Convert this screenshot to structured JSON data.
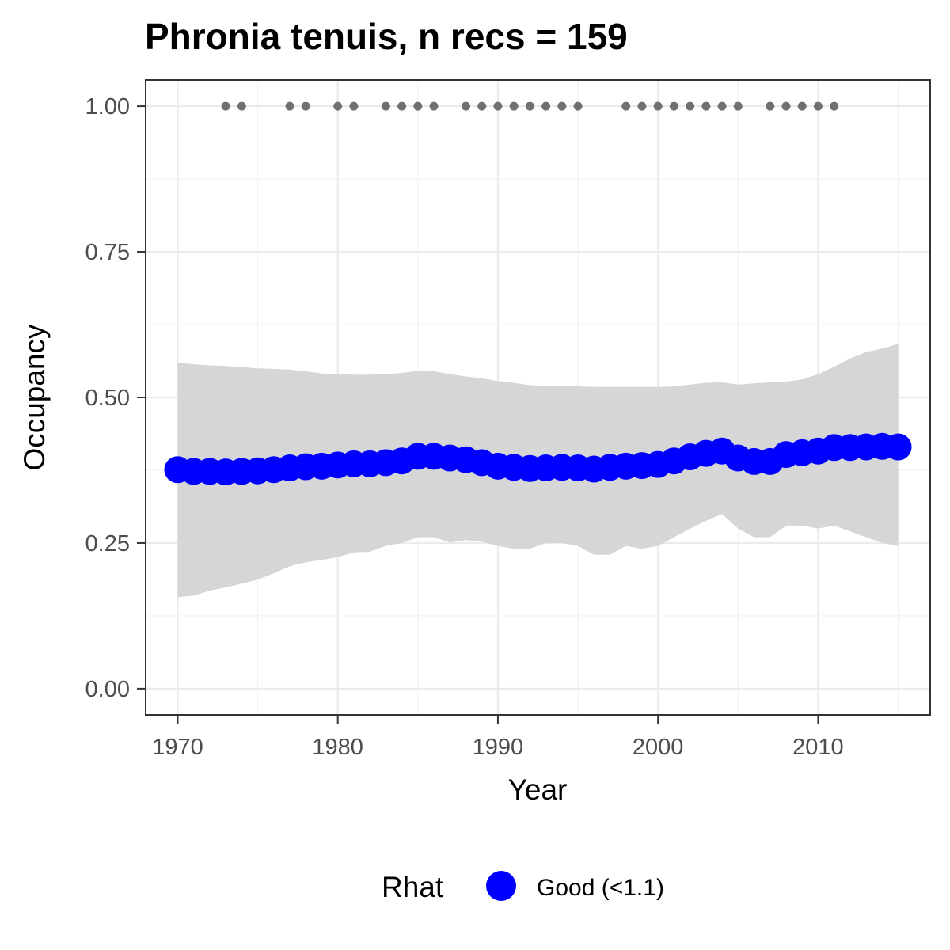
{
  "chart_data": {
    "type": "line",
    "title": "Phronia tenuis, n recs = 159",
    "xlabel": "Year",
    "ylabel": "Occupancy",
    "xlim": [
      1968,
      2017
    ],
    "ylim": [
      -0.045,
      1.045
    ],
    "x_ticks": [
      1970,
      1980,
      1990,
      2000,
      2010
    ],
    "y_ticks": [
      0.0,
      0.25,
      0.5,
      0.75,
      1.0
    ],
    "y_tick_labels": [
      "0.00",
      "0.25",
      "0.50",
      "0.75",
      "1.00"
    ],
    "grid": true,
    "legend": {
      "title": "Rhat",
      "placement": "bottom",
      "entries": [
        {
          "label": "Good (<1.1)",
          "color": "#0000ff"
        }
      ]
    },
    "series": [
      {
        "kind": "occupancy-estimate",
        "color": "#0000ff",
        "x": [
          1970,
          1971,
          1972,
          1973,
          1974,
          1975,
          1976,
          1977,
          1978,
          1979,
          1980,
          1981,
          1982,
          1983,
          1984,
          1985,
          1986,
          1987,
          1988,
          1989,
          1990,
          1991,
          1992,
          1993,
          1994,
          1995,
          1996,
          1997,
          1998,
          1999,
          2000,
          2001,
          2002,
          2003,
          2004,
          2005,
          2006,
          2007,
          2008,
          2009,
          2010,
          2011,
          2012,
          2013,
          2014,
          2015
        ],
        "y": [
          0.376,
          0.373,
          0.373,
          0.372,
          0.373,
          0.374,
          0.376,
          0.379,
          0.381,
          0.382,
          0.384,
          0.386,
          0.386,
          0.388,
          0.391,
          0.399,
          0.399,
          0.396,
          0.393,
          0.388,
          0.382,
          0.38,
          0.378,
          0.379,
          0.38,
          0.379,
          0.377,
          0.38,
          0.382,
          0.383,
          0.385,
          0.391,
          0.398,
          0.404,
          0.408,
          0.396,
          0.39,
          0.39,
          0.402,
          0.405,
          0.408,
          0.414,
          0.414,
          0.415,
          0.416,
          0.415
        ],
        "ci_lower": [
          0.157,
          0.16,
          0.168,
          0.174,
          0.18,
          0.187,
          0.198,
          0.21,
          0.217,
          0.221,
          0.226,
          0.234,
          0.235,
          0.245,
          0.25,
          0.26,
          0.26,
          0.251,
          0.255,
          0.252,
          0.245,
          0.24,
          0.24,
          0.25,
          0.25,
          0.245,
          0.23,
          0.23,
          0.245,
          0.24,
          0.245,
          0.26,
          0.275,
          0.288,
          0.3,
          0.275,
          0.26,
          0.26,
          0.28,
          0.28,
          0.275,
          0.28,
          0.27,
          0.26,
          0.25,
          0.245
        ],
        "ci_upper": [
          0.56,
          0.557,
          0.555,
          0.554,
          0.552,
          0.55,
          0.549,
          0.548,
          0.545,
          0.541,
          0.54,
          0.539,
          0.539,
          0.54,
          0.542,
          0.546,
          0.545,
          0.54,
          0.536,
          0.533,
          0.528,
          0.525,
          0.521,
          0.52,
          0.519,
          0.519,
          0.518,
          0.518,
          0.518,
          0.518,
          0.518,
          0.519,
          0.522,
          0.525,
          0.526,
          0.522,
          0.524,
          0.526,
          0.527,
          0.531,
          0.54,
          0.553,
          0.567,
          0.578,
          0.584,
          0.592
        ]
      },
      {
        "kind": "record-years",
        "color": "#707070",
        "x": [
          1973,
          1974,
          1977,
          1978,
          1980,
          1981,
          1983,
          1984,
          1985,
          1986,
          1988,
          1989,
          1990,
          1991,
          1992,
          1993,
          1994,
          1995,
          1998,
          1999,
          2000,
          2001,
          2002,
          2003,
          2004,
          2005,
          2007,
          2008,
          2009,
          2010,
          2011
        ],
        "y": 1.0
      }
    ],
    "ci_color": "#d6d6d6"
  }
}
